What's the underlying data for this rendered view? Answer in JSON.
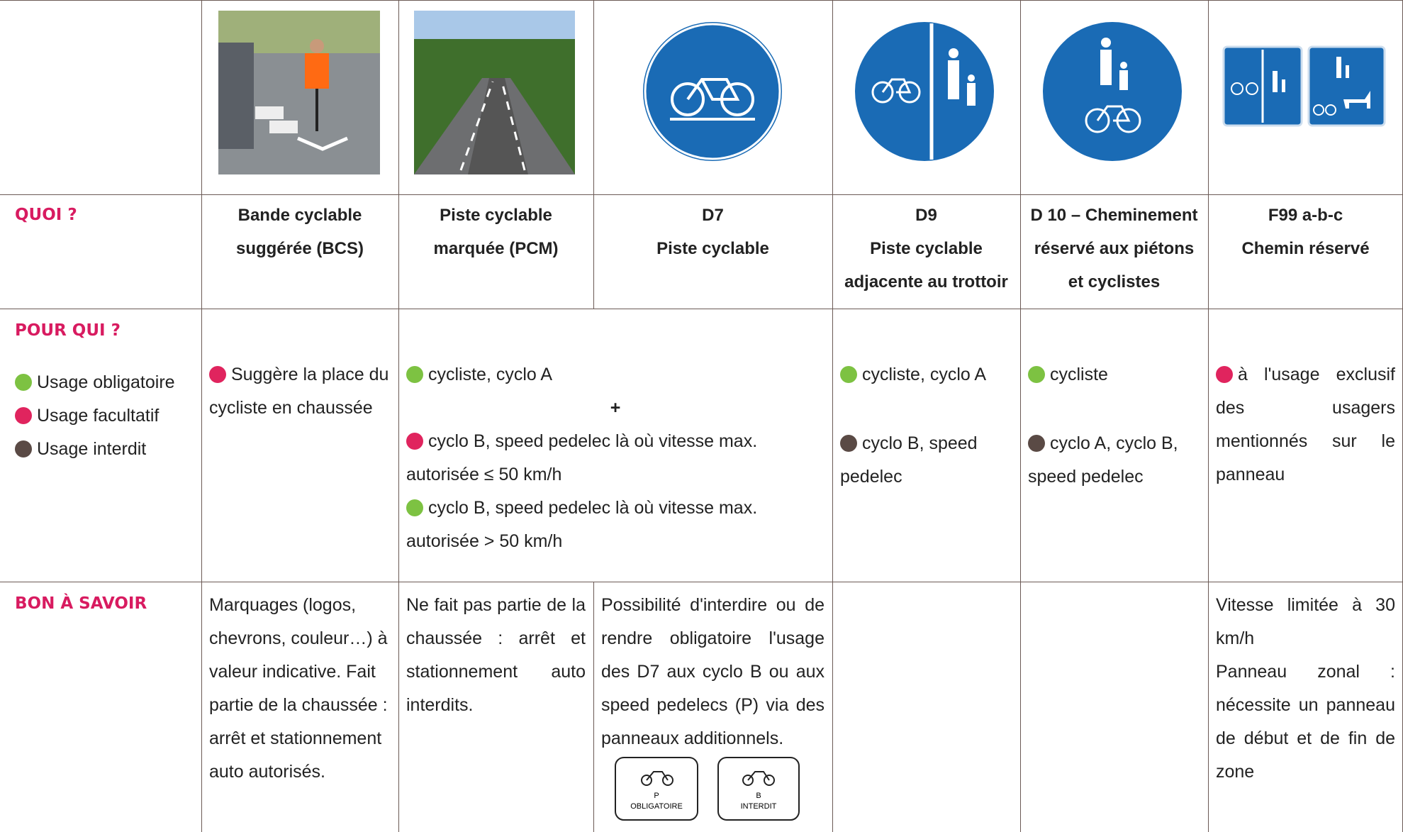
{
  "labels": {
    "quoi": "QUOI ?",
    "pour_qui": "POUR QUI ?",
    "bon_a_savoir": "BON À SAVOIR"
  },
  "legend": [
    {
      "label": "Usage obligatoire",
      "color": "#7dc242"
    },
    {
      "label": "Usage facultatif",
      "color": "#e0245e"
    },
    {
      "label": "Usage interdit",
      "color": "#5a4a45"
    }
  ],
  "quoi": [
    [
      "Bande cyclable",
      "suggérée (BCS)"
    ],
    [
      "Piste cyclable",
      "marquée (PCM)"
    ],
    [
      "D7",
      "Piste cyclable"
    ],
    [
      "D9",
      "Piste cyclable",
      "adjacente au trottoir"
    ],
    [
      "D 10 – Cheminement",
      "réservé aux piétons",
      "et cyclistes"
    ],
    [
      "F99 a-b-c",
      "Chemin réservé"
    ]
  ],
  "pour_qui": {
    "bcs": [
      {
        "usage": 1,
        "text": "Suggère la place du cycliste en chaussée"
      }
    ],
    "pcm_d7": {
      "items": [
        {
          "usage": 0,
          "text": "cycliste, cyclo A"
        },
        {
          "usage": 1,
          "text": "cyclo B, speed pedelec là où vitesse max. autorisée ≤ 50 km/h"
        },
        {
          "usage": 0,
          "text": "cyclo B, speed pedelec là où vitesse max. autorisée > 50 km/h"
        }
      ],
      "plus": "+"
    },
    "d9": [
      {
        "usage": 0,
        "text": "cycliste, cyclo A"
      },
      {
        "usage": 2,
        "text": "cyclo B, speed pedelec"
      }
    ],
    "d10": [
      {
        "usage": 0,
        "text": "cycliste"
      },
      {
        "usage": 2,
        "text": "cyclo A, cyclo B, speed pedelec"
      }
    ],
    "f99": [
      {
        "usage": 1,
        "text": "à l'usage exclusif des usagers mentionnés sur le panneau"
      }
    ]
  },
  "bon_a_savoir": {
    "bcs": "Marquages (logos, chevrons, couleur…) à valeur indicative. Fait partie de la chaussée : arrêt et stationnement auto autorisés.",
    "pcm": "Ne fait pas partie de la chaussée : arrêt et stationnement auto interdits.",
    "d7": "Possibilité d'interdire ou de rendre obligatoire l'usage des D7 aux cyclo B ou aux speed pedelecs (P) via des panneaux additionnels.",
    "d7_signs": [
      {
        "letter": "P",
        "text": "OBLIGATOIRE"
      },
      {
        "letter": "B",
        "text": "INTERDIT"
      }
    ],
    "f99": [
      "Vitesse limitée à 30 km/h",
      "Panneau zonal : nécessite un panneau de début et de fin de zone"
    ]
  }
}
